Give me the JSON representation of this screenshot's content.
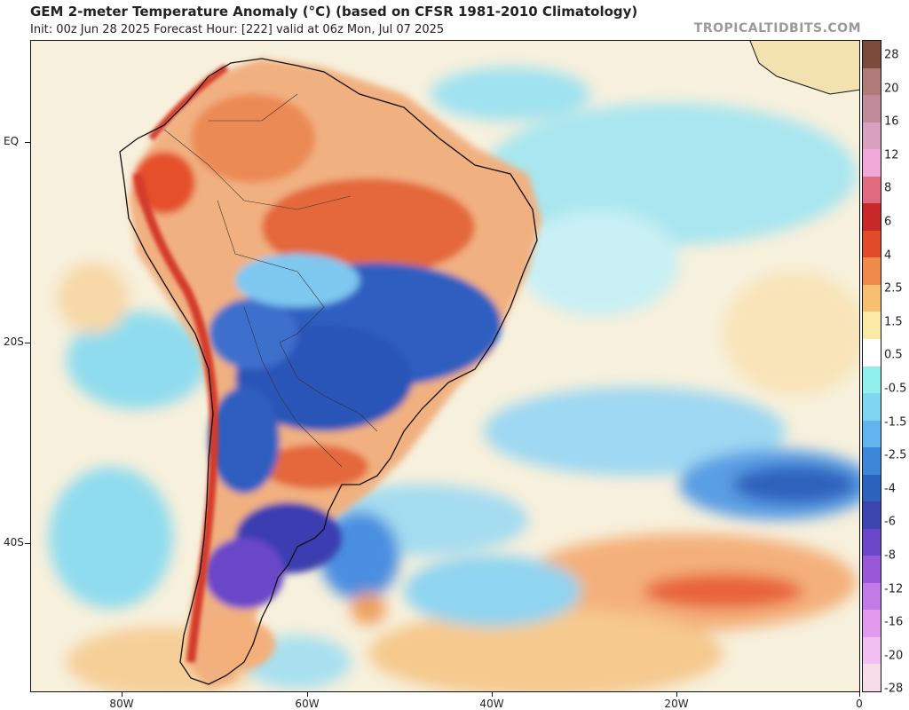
{
  "header": {
    "title": "GEM 2-meter Temperature Anomaly (°C) (based on CFSR 1981-2010 Climatology)",
    "subtitle": "Init: 00z Jun 28 2025   Forecast Hour: [222]   valid at 06z Mon, Jul 07 2025",
    "brand": "TROPICALTIDBITS.COM"
  },
  "map": {
    "region": "South America and South Atlantic",
    "lat_labels": [
      "EQ",
      "20S",
      "40S"
    ],
    "lon_labels": [
      "80W",
      "60W",
      "40W",
      "20W",
      "0"
    ]
  },
  "colorbar": {
    "labels": [
      "28",
      "20",
      "16",
      "12",
      "8",
      "6",
      "4",
      "2.5",
      "1.5",
      "0.5",
      "-0.5",
      "-1.5",
      "-2.5",
      "-4",
      "-6",
      "-8",
      "-12",
      "-16",
      "-20",
      "-28"
    ],
    "colors": [
      "#7a4a3a",
      "#b07a7a",
      "#c08a9a",
      "#d9a0c0",
      "#f0a8d8",
      "#e06a80",
      "#c92828",
      "#e24a2a",
      "#f08a4a",
      "#f7c070",
      "#fbe9a8",
      "#ffffff",
      "#8ff0ee",
      "#7fd6f2",
      "#62b4ee",
      "#3e86d8",
      "#2a62bd",
      "#3c44b0",
      "#6a46c8",
      "#9a58d8",
      "#c27ae6",
      "#e39aee",
      "#f2c0f0",
      "#f7dde8"
    ]
  }
}
